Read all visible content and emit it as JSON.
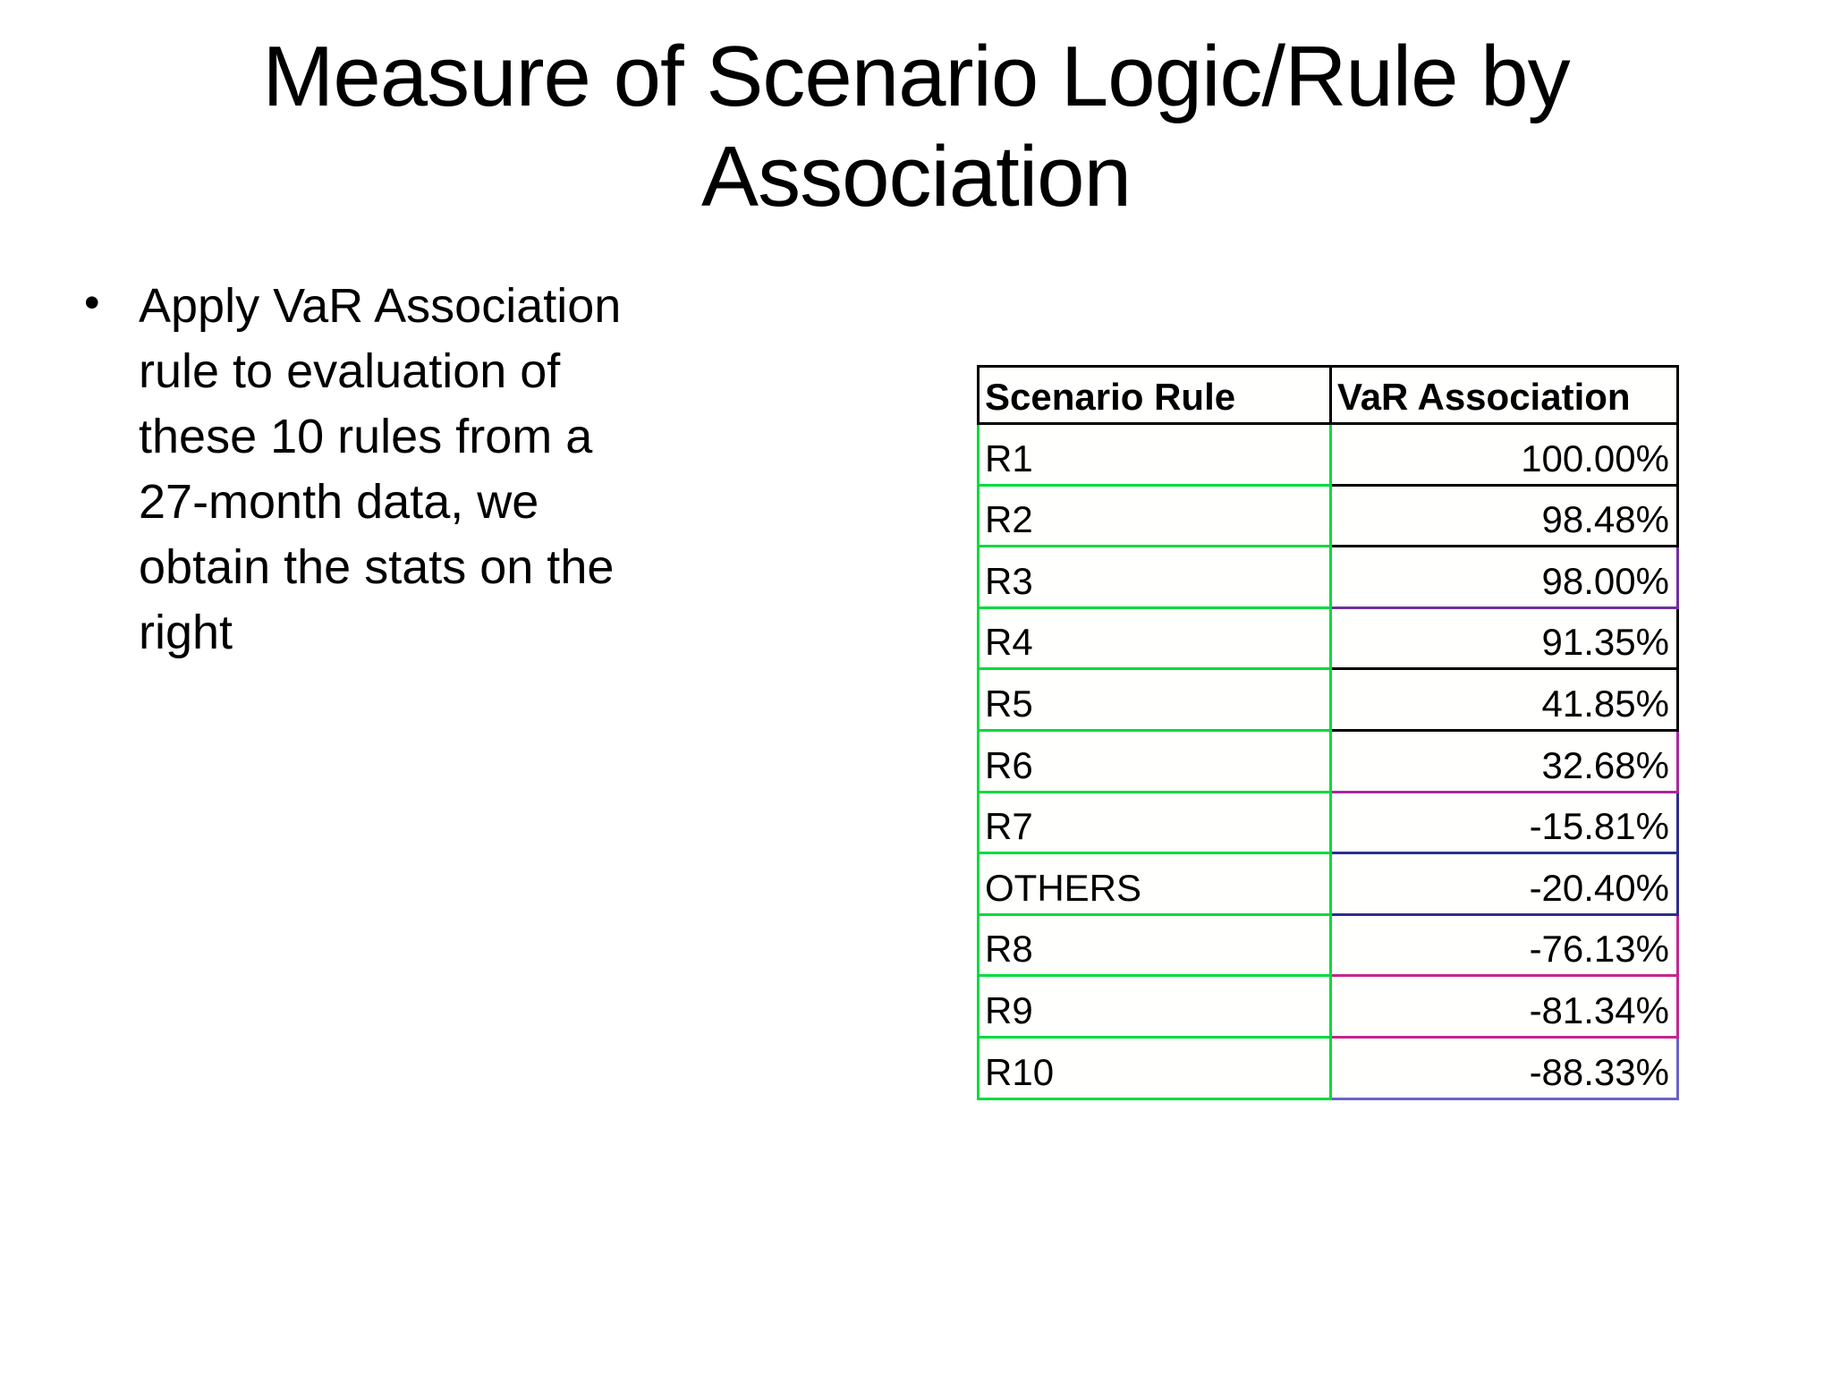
{
  "title_lines": [
    "Measure of Scenario Logic/Rule by",
    "Association"
  ],
  "bullet": {
    "marker": "•",
    "lines": [
      "Apply VaR Association",
      "rule to evaluation of",
      "these 10 rules from a",
      "27-month data, we",
      "obtain the stats on the",
      "right"
    ]
  },
  "table": {
    "headers": [
      "Scenario Rule",
      "VaR Association"
    ],
    "colors": {
      "left_column_border": "#00DC3C",
      "header_border": "#000000"
    },
    "rows": [
      {
        "rule": "R1",
        "value": "100.00%",
        "border_color": "#000000"
      },
      {
        "rule": "R2",
        "value": "98.48%",
        "border_color": "#000000"
      },
      {
        "rule": "R3",
        "value": "98.00%",
        "border_color": "#7030A0"
      },
      {
        "rule": "R4",
        "value": "91.35%",
        "border_color": "#000000"
      },
      {
        "rule": "R5",
        "value": "41.85%",
        "border_color": "#000000"
      },
      {
        "rule": "R6",
        "value": "32.68%",
        "border_color": "#A8289C"
      },
      {
        "rule": "R7",
        "value": "-15.81%",
        "border_color": "#2B2E8C"
      },
      {
        "rule": "OTHERS",
        "value": "-20.40%",
        "border_color": "#2B2E8C"
      },
      {
        "rule": "R8",
        "value": "-76.13%",
        "border_color": "#C42690"
      },
      {
        "rule": "R9",
        "value": "-81.34%",
        "border_color": "#C42690"
      },
      {
        "rule": "R10",
        "value": "-88.33%",
        "border_color": "#6A62C8"
      }
    ]
  }
}
